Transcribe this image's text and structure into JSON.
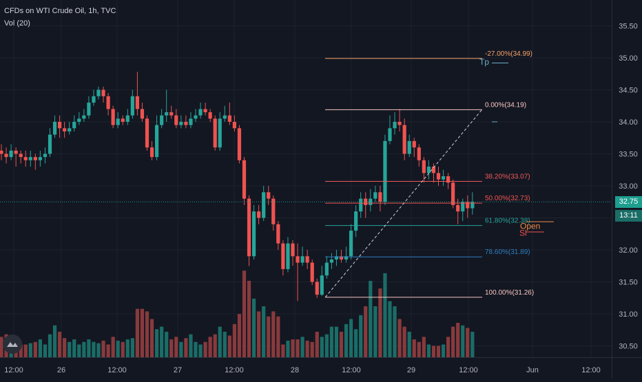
{
  "legend": {
    "symbol": "CFDs on WTI Crude Oil, 1h, TVC",
    "indicator": "Vol (20)"
  },
  "colors": {
    "background": "#131722",
    "grid": "#1e222d",
    "up": "#26a69a",
    "down": "#ef5350",
    "vol_up": "#1b6d67",
    "vol_down": "#883a3c",
    "axis_text": "#b2b5be",
    "last_price_badge": "#1e9e8f",
    "countdown_badge": "#1b6d67"
  },
  "price_badge": {
    "value": "32.75"
  },
  "countdown_badge": {
    "value": "13:11"
  },
  "chart_data": {
    "type": "candlestick",
    "symbol": "CFDs on WTI Crude Oil",
    "interval": "1h",
    "source": "TVC",
    "y_ticks": [
      30.5,
      31.0,
      31.5,
      32.0,
      32.5,
      33.0,
      33.5,
      34.0,
      34.5,
      35.0,
      35.5
    ],
    "y_tick_labels": [
      "30.50",
      "31.00",
      "31.50",
      "32.00",
      "32.50",
      "33.00",
      "33.50",
      "34.00",
      "34.50",
      "35.00",
      "35.50"
    ],
    "x_tick_labels": [
      "12:00",
      "26",
      "12:00",
      "27",
      "12:00",
      "28",
      "12:00",
      "29",
      "12:00",
      "Jun",
      "12:00"
    ],
    "last_price": 32.75,
    "candles": [
      [
        33.55,
        33.5,
        33.65,
        33.4
      ],
      [
        33.5,
        33.45,
        33.6,
        33.35
      ],
      [
        33.45,
        33.55,
        33.65,
        33.4
      ],
      [
        33.55,
        33.5,
        33.6,
        33.3
      ],
      [
        33.5,
        33.45,
        33.55,
        33.35
      ],
      [
        33.45,
        33.4,
        33.55,
        33.3
      ],
      [
        33.4,
        33.45,
        33.55,
        33.3
      ],
      [
        33.45,
        33.4,
        33.5,
        33.25
      ],
      [
        33.4,
        33.45,
        33.55,
        33.3
      ],
      [
        33.45,
        33.5,
        33.6,
        33.35
      ],
      [
        33.5,
        33.8,
        33.9,
        33.45
      ],
      [
        33.8,
        34.0,
        34.1,
        33.75
      ],
      [
        34.0,
        33.9,
        34.1,
        33.75
      ],
      [
        33.9,
        33.85,
        34.0,
        33.75
      ],
      [
        33.85,
        33.9,
        34.0,
        33.8
      ],
      [
        33.9,
        34.0,
        34.1,
        33.85
      ],
      [
        34.0,
        34.05,
        34.15,
        33.95
      ],
      [
        34.05,
        34.1,
        34.2,
        34.0
      ],
      [
        34.1,
        34.3,
        34.4,
        34.05
      ],
      [
        34.3,
        34.4,
        34.5,
        34.25
      ],
      [
        34.4,
        34.5,
        34.55,
        34.35
      ],
      [
        34.5,
        34.4,
        34.55,
        34.3
      ],
      [
        34.4,
        34.2,
        34.45,
        34.1
      ],
      [
        34.2,
        33.95,
        34.25,
        33.9
      ],
      [
        33.95,
        34.05,
        34.15,
        33.9
      ],
      [
        34.05,
        34.0,
        34.1,
        33.95
      ],
      [
        34.0,
        34.1,
        34.2,
        33.95
      ],
      [
        34.1,
        34.4,
        34.5,
        34.05
      ],
      [
        34.4,
        34.2,
        34.78,
        34.1
      ],
      [
        34.2,
        34.05,
        34.3,
        34.0
      ],
      [
        34.05,
        33.6,
        34.1,
        33.55
      ],
      [
        33.6,
        33.45,
        33.7,
        33.4
      ],
      [
        33.45,
        33.95,
        34.1,
        33.4
      ],
      [
        33.95,
        34.1,
        34.2,
        33.9
      ],
      [
        34.1,
        34.15,
        34.5,
        34.0
      ],
      [
        34.15,
        34.1,
        34.25,
        34.05
      ],
      [
        34.1,
        33.95,
        34.2,
        33.9
      ],
      [
        33.95,
        34.0,
        34.1,
        33.9
      ],
      [
        34.0,
        33.95,
        34.1,
        33.9
      ],
      [
        33.95,
        34.05,
        34.15,
        33.9
      ],
      [
        34.05,
        34.1,
        34.2,
        34.0
      ],
      [
        34.1,
        34.2,
        34.3,
        34.05
      ],
      [
        34.2,
        34.15,
        34.3,
        34.1
      ],
      [
        34.15,
        34.05,
        34.2,
        34.0
      ],
      [
        34.05,
        33.6,
        34.1,
        33.55
      ],
      [
        33.6,
        34.05,
        34.15,
        33.55
      ],
      [
        34.05,
        34.1,
        34.25,
        34.0
      ],
      [
        34.1,
        34.0,
        34.3,
        33.95
      ],
      [
        34.0,
        33.9,
        34.1,
        33.85
      ],
      [
        33.9,
        33.4,
        33.95,
        33.35
      ],
      [
        33.4,
        32.8,
        33.45,
        32.7
      ],
      [
        32.8,
        31.9,
        32.85,
        31.75
      ],
      [
        31.9,
        32.6,
        32.7,
        31.85
      ],
      [
        32.6,
        32.5,
        32.7,
        32.4
      ],
      [
        32.5,
        32.9,
        33.0,
        32.45
      ],
      [
        32.9,
        32.8,
        33.0,
        32.7
      ],
      [
        32.8,
        32.4,
        32.85,
        32.3
      ],
      [
        32.4,
        32.1,
        32.45,
        32.0
      ],
      [
        32.1,
        31.7,
        32.15,
        31.6
      ],
      [
        31.7,
        32.1,
        32.2,
        31.65
      ],
      [
        32.1,
        31.9,
        32.15,
        31.75
      ],
      [
        31.9,
        31.8,
        32.1,
        31.2
      ],
      [
        31.8,
        31.9,
        32.05,
        31.75
      ],
      [
        31.9,
        31.8,
        32.0,
        31.7
      ],
      [
        31.8,
        31.5,
        31.85,
        31.45
      ],
      [
        31.5,
        31.3,
        31.55,
        31.25
      ],
      [
        31.3,
        31.6,
        31.75,
        31.28
      ],
      [
        31.6,
        31.8,
        31.9,
        31.55
      ],
      [
        31.8,
        31.85,
        31.95,
        31.7
      ],
      [
        31.85,
        31.9,
        32.0,
        31.75
      ],
      [
        31.9,
        31.85,
        32.0,
        31.8
      ],
      [
        31.85,
        31.9,
        32.05,
        31.8
      ],
      [
        31.9,
        32.3,
        32.4,
        31.85
      ],
      [
        32.3,
        32.6,
        32.7,
        32.2
      ],
      [
        32.6,
        32.8,
        32.9,
        32.5
      ],
      [
        32.8,
        32.7,
        32.9,
        32.5
      ],
      [
        32.7,
        32.8,
        32.95,
        32.6
      ],
      [
        32.8,
        32.9,
        33.0,
        32.75
      ],
      [
        32.9,
        32.75,
        33.0,
        32.6
      ],
      [
        32.75,
        33.7,
        33.8,
        32.7
      ],
      [
        33.7,
        33.9,
        34.1,
        33.65
      ],
      [
        33.9,
        34.0,
        34.15,
        33.8
      ],
      [
        34.0,
        33.95,
        34.2,
        33.85
      ],
      [
        33.95,
        33.5,
        34.05,
        33.4
      ],
      [
        33.5,
        33.7,
        33.8,
        33.45
      ],
      [
        33.7,
        33.6,
        33.75,
        33.45
      ],
      [
        33.6,
        33.4,
        33.65,
        33.3
      ],
      [
        33.4,
        33.2,
        33.45,
        33.05
      ],
      [
        33.2,
        33.3,
        33.4,
        33.1
      ],
      [
        33.3,
        33.2,
        33.35,
        33.05
      ],
      [
        33.2,
        33.1,
        33.3,
        33.0
      ],
      [
        33.1,
        33.15,
        33.25,
        33.0
      ],
      [
        33.15,
        33.05,
        33.2,
        32.95
      ],
      [
        33.05,
        32.7,
        33.1,
        32.65
      ],
      [
        32.7,
        32.6,
        32.8,
        32.4
      ],
      [
        32.6,
        32.75,
        32.8,
        32.45
      ],
      [
        32.75,
        32.65,
        32.85,
        32.5
      ],
      [
        32.65,
        32.75,
        32.9,
        32.55
      ]
    ],
    "volume": [
      0.16,
      0.18,
      0.12,
      0.14,
      0.1,
      0.1,
      0.11,
      0.12,
      0.14,
      0.1,
      0.18,
      0.25,
      0.2,
      0.15,
      0.12,
      0.14,
      0.1,
      0.12,
      0.14,
      0.12,
      0.11,
      0.13,
      0.1,
      0.16,
      0.13,
      0.12,
      0.14,
      0.15,
      0.38,
      0.38,
      0.36,
      0.3,
      0.22,
      0.24,
      0.2,
      0.14,
      0.16,
      0.12,
      0.15,
      0.18,
      0.12,
      0.1,
      0.12,
      0.16,
      0.18,
      0.24,
      0.2,
      0.17,
      0.26,
      0.34,
      0.68,
      0.6,
      0.46,
      0.36,
      0.4,
      0.32,
      0.36,
      0.32,
      0.1,
      0.13,
      0.14,
      0.14,
      0.16,
      0.13,
      0.12,
      0.2,
      0.16,
      0.18,
      0.24,
      0.24,
      0.2,
      0.26,
      0.3,
      0.22,
      0.33,
      0.4,
      0.6,
      0.4,
      0.54,
      0.66,
      0.44,
      0.4,
      0.3,
      0.24,
      0.2,
      0.14,
      0.12,
      0.16,
      0.1,
      0.09,
      0.09,
      0.1,
      0.16,
      0.24,
      0.27,
      0.25,
      0.23,
      0.2
    ],
    "fibonacci": {
      "levels": [
        {
          "label": "-27.00%(34.99)",
          "price": 34.99,
          "color": "#f7a26a"
        },
        {
          "label": "0.00%(34.19)",
          "price": 34.19,
          "color": "#f8c6c0"
        },
        {
          "label": "38.20%(33.07)",
          "price": 33.07,
          "color": "#f05a5a"
        },
        {
          "label": "50.00%(32.73)",
          "price": 32.73,
          "color": "#ef5350"
        },
        {
          "label": "61.80%(32.38)",
          "price": 32.38,
          "color": "#26a69a"
        },
        {
          "label": "78.60%(31.89)",
          "price": 31.89,
          "color": "#2f7fc1"
        },
        {
          "label": "100.00%(31.26)",
          "price": 31.26,
          "color": "#f8c6c0"
        }
      ],
      "trend_start_bar": 65,
      "trend_end_bar": 93
    },
    "annotations": [
      {
        "label": "Tp",
        "color": "#6ab0c6"
      },
      {
        "label": "Open",
        "color": "#ef8c45"
      },
      {
        "label": "Sl",
        "color": "#ef5350"
      }
    ]
  }
}
